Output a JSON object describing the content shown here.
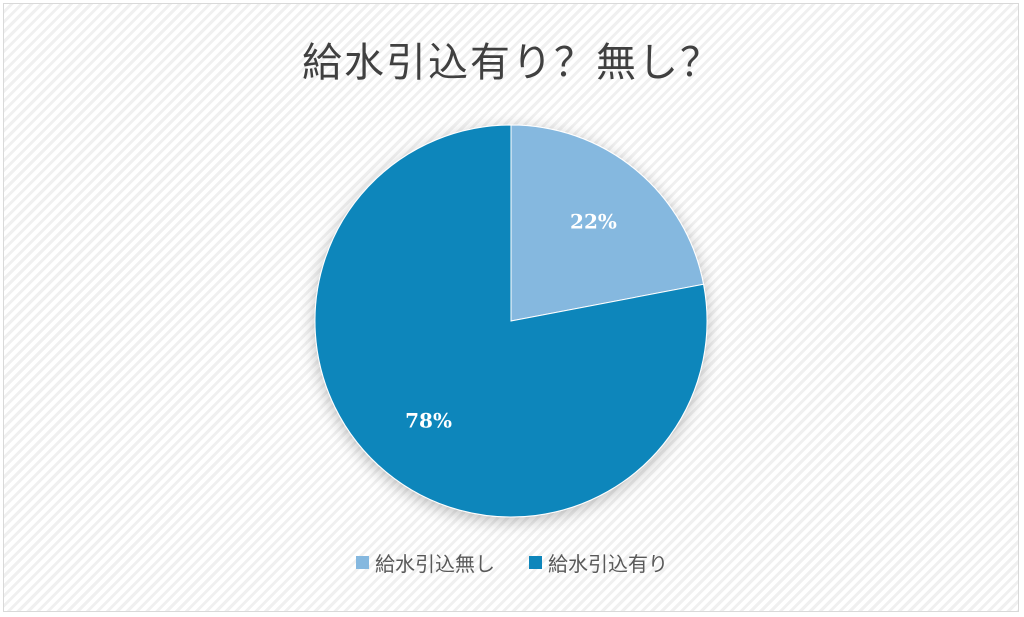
{
  "chart_data": {
    "type": "pie",
    "title": "給水引込有り？無し？",
    "slices": [
      {
        "label": "給水引込無し",
        "value": 22,
        "data_label": "22%",
        "color": "#85b8df"
      },
      {
        "label": "給水引込有り",
        "value": 78,
        "data_label": "78%",
        "color": "#0e86bb"
      }
    ],
    "start_angle_deg": 0,
    "direction": "clockwise",
    "legend_position": "bottom"
  }
}
